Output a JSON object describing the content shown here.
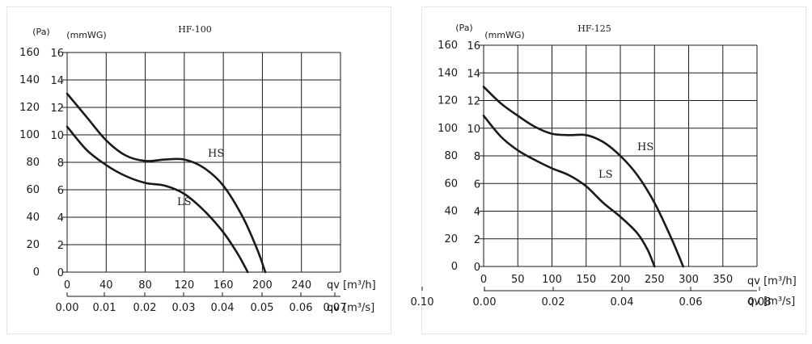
{
  "chart_data": [
    {
      "type": "line",
      "title": "HF-100",
      "ylabel_pa": "(Pa)",
      "ylabel_mmwg": "(mmWG)",
      "xlabel_m3h": "qv [m³/h]",
      "xlabel_m3s": "qv [m³/s]",
      "x_m3h_ticks": [
        "0",
        "40",
        "80",
        "120",
        "160",
        "200",
        "240"
      ],
      "x_m3s_ticks": [
        "0.00",
        "0.01",
        "0.02",
        "0.03",
        "0.04",
        "0.05",
        "0.06",
        "0.07"
      ],
      "y_pa_ticks": [
        "0",
        "20",
        "40",
        "60",
        "80",
        "100",
        "120",
        "140",
        "160"
      ],
      "y_mmwg_ticks": [
        "0",
        "2",
        "4",
        "6",
        "8",
        "10",
        "12",
        "14",
        "16"
      ],
      "xlim_m3h": [
        0,
        280
      ],
      "ylim_pa": [
        0,
        160
      ],
      "series": [
        {
          "name": "HS",
          "x": [
            0,
            20,
            40,
            60,
            80,
            100,
            120,
            140,
            160,
            180,
            195,
            203
          ],
          "y": [
            130,
            113,
            96,
            85,
            81,
            82,
            82,
            76,
            63,
            40,
            16,
            0
          ]
        },
        {
          "name": "LS",
          "x": [
            0,
            20,
            40,
            60,
            80,
            100,
            120,
            140,
            160,
            175,
            185
          ],
          "y": [
            106,
            89,
            78,
            70,
            65,
            63,
            57,
            45,
            29,
            13,
            0
          ]
        }
      ]
    },
    {
      "type": "line",
      "title": "HF-125",
      "ylabel_pa": "(Pa)",
      "ylabel_mmwg": "(mmWG)",
      "xlabel_m3h": "qv [m³/h]",
      "xlabel_m3s": "qv [m³/s]",
      "x_m3h_ticks": [
        "0",
        "50",
        "100",
        "150",
        "200",
        "250",
        "300",
        "350"
      ],
      "x_m3s_ticks": [
        "0.00",
        "0.02",
        "0.04",
        "0.06",
        "0.08",
        "0.10"
      ],
      "y_pa_ticks": [
        "0",
        "20",
        "40",
        "60",
        "80",
        "100",
        "120",
        "140",
        "160"
      ],
      "y_mmwg_ticks": [
        "0",
        "2",
        "4",
        "6",
        "8",
        "10",
        "12",
        "14",
        "16"
      ],
      "xlim_m3h": [
        0,
        400
      ],
      "ylim_pa": [
        0,
        160
      ],
      "series": [
        {
          "name": "HS",
          "x": [
            0,
            25,
            50,
            75,
            100,
            125,
            150,
            175,
            200,
            225,
            250,
            275,
            292
          ],
          "y": [
            130,
            118,
            109,
            101,
            96,
            95,
            95,
            90,
            80,
            66,
            46,
            20,
            0
          ]
        },
        {
          "name": "LS",
          "x": [
            0,
            25,
            50,
            75,
            100,
            125,
            150,
            175,
            200,
            225,
            240,
            250
          ],
          "y": [
            109,
            94,
            84,
            77,
            71,
            66,
            58,
            46,
            36,
            24,
            12,
            0
          ]
        }
      ]
    }
  ]
}
